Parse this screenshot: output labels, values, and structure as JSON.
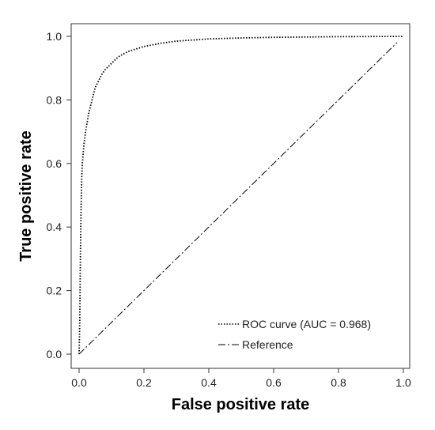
{
  "chart_data": {
    "type": "line",
    "title": "",
    "xlabel": "False positive rate",
    "ylabel": "True positive rate",
    "xlim": [
      0,
      1
    ],
    "ylim": [
      0,
      1
    ],
    "xticks": [
      "0.0",
      "0.2",
      "0.4",
      "0.6",
      "0.8",
      "1.0"
    ],
    "yticks": [
      "0.0",
      "0.2",
      "0.4",
      "0.6",
      "0.8",
      "1.0"
    ],
    "grid": false,
    "legend_position": "bottom-right",
    "series": [
      {
        "name": "ROC curve (AUC = 0.968)",
        "style": "dotted",
        "color": "#000000",
        "x": [
          0,
          0.002,
          0.004,
          0.006,
          0.008,
          0.01,
          0.015,
          0.02,
          0.03,
          0.04,
          0.05,
          0.06,
          0.07,
          0.08,
          0.1,
          0.12,
          0.15,
          0.2,
          0.25,
          0.3,
          0.4,
          0.5,
          0.6,
          0.7,
          0.8,
          0.9,
          1.0
        ],
        "y": [
          0,
          0.1,
          0.3,
          0.45,
          0.55,
          0.6,
          0.66,
          0.7,
          0.76,
          0.8,
          0.84,
          0.86,
          0.88,
          0.895,
          0.915,
          0.935,
          0.952,
          0.968,
          0.978,
          0.985,
          0.992,
          0.995,
          0.997,
          0.998,
          0.999,
          0.9995,
          1.0
        ]
      },
      {
        "name": "Reference",
        "style": "dashdot",
        "color": "#000000",
        "x": [
          0,
          0.98
        ],
        "y": [
          0,
          0.98
        ]
      }
    ]
  }
}
